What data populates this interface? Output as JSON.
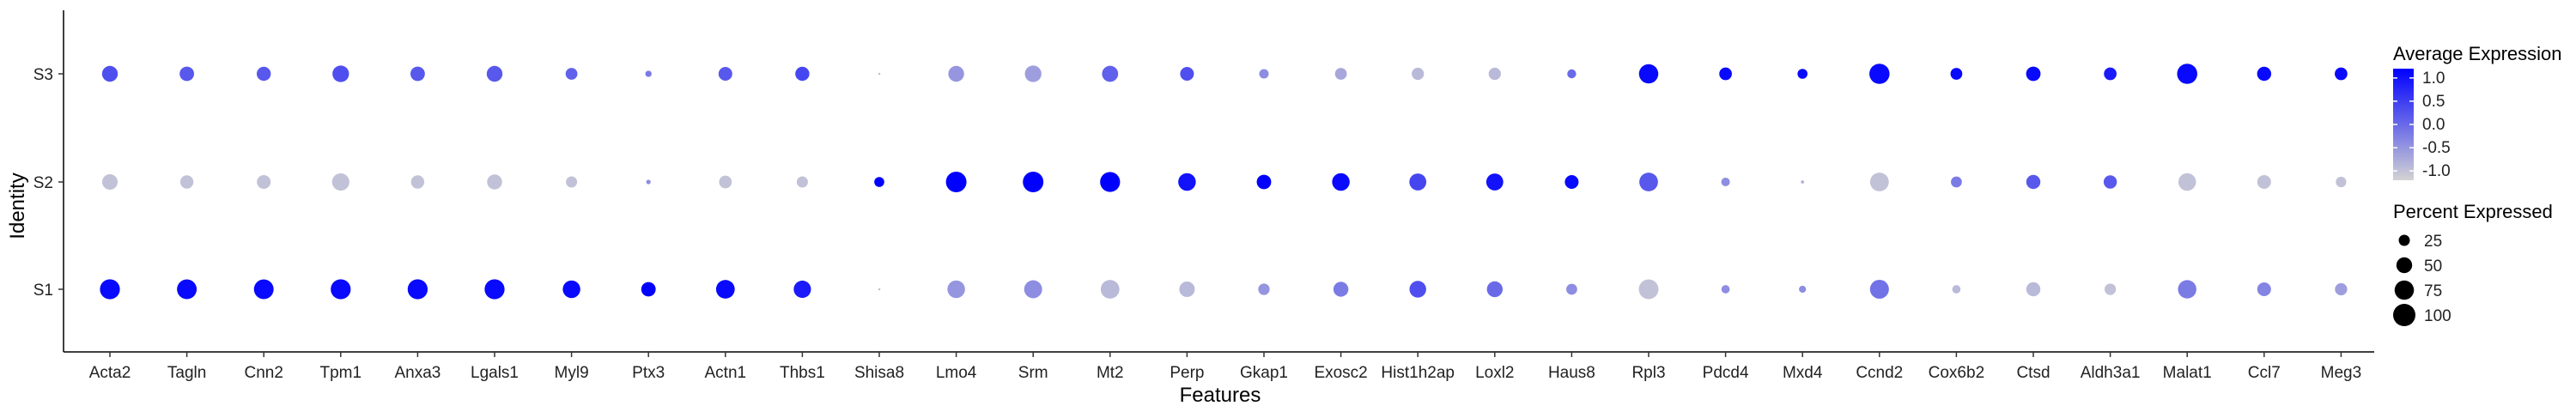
{
  "chart_data": {
    "type": "dotplot",
    "title": "",
    "xlabel": "Features",
    "ylabel": "Identity",
    "features": [
      "Acta2",
      "Tagln",
      "Cnn2",
      "Tpm1",
      "Anxa3",
      "Lgals1",
      "Myl9",
      "Ptx3",
      "Actn1",
      "Thbs1",
      "Shisa8",
      "Lmo4",
      "Srm",
      "Mt2",
      "Perp",
      "Gkap1",
      "Exosc2",
      "Hist1h2ap",
      "Loxl2",
      "Haus8",
      "Rpl3",
      "Pdcd4",
      "Mxd4",
      "Ccnd2",
      "Cox6b2",
      "Ctsd",
      "Aldh3a1",
      "Malat1",
      "Ccl7",
      "Meg3"
    ],
    "identities": [
      "S3",
      "S2",
      "S1"
    ],
    "series": [
      {
        "name": "S3",
        "avg_expression": [
          0.3,
          0.2,
          0.2,
          0.3,
          0.2,
          0.2,
          0.1,
          -0.2,
          0.2,
          0.4,
          -1.0,
          -0.5,
          -0.6,
          0.1,
          0.3,
          -0.4,
          -0.7,
          -0.9,
          -0.9,
          0.0,
          1.1,
          1.1,
          1.1,
          1.1,
          1.1,
          1.1,
          0.9,
          1.1,
          1.1,
          1.1
        ],
        "pct_expressed": [
          50,
          42,
          40,
          55,
          42,
          50,
          28,
          8,
          38,
          40,
          1,
          50,
          55,
          52,
          38,
          18,
          28,
          30,
          30,
          16,
          75,
          32,
          20,
          82,
          28,
          42,
          32,
          82,
          40,
          32
        ]
      },
      {
        "name": "S2",
        "avg_expression": [
          -1.0,
          -1.0,
          -1.0,
          -1.0,
          -1.0,
          -1.0,
          -1.0,
          -0.4,
          -1.0,
          -1.0,
          1.2,
          1.2,
          1.2,
          1.2,
          1.0,
          1.2,
          1.1,
          0.4,
          1.0,
          1.1,
          0.2,
          -0.4,
          -0.8,
          -1.0,
          -0.2,
          0.2,
          0.2,
          -1.0,
          -1.0,
          -1.0
        ],
        "pct_expressed": [
          48,
          35,
          38,
          60,
          35,
          45,
          25,
          4,
          32,
          25,
          20,
          85,
          85,
          80,
          62,
          42,
          62,
          58,
          58,
          38,
          70,
          15,
          2,
          70,
          24,
          40,
          35,
          62,
          38,
          22
        ]
      },
      {
        "name": "S1",
        "avg_expression": [
          1.1,
          1.1,
          1.1,
          1.1,
          1.1,
          1.1,
          1.1,
          1.2,
          1.1,
          0.9,
          -1.0,
          -0.5,
          -0.4,
          -0.9,
          -0.9,
          -0.5,
          -0.2,
          0.3,
          0.0,
          -0.4,
          -1.0,
          -0.4,
          -0.4,
          -0.1,
          -0.9,
          -0.9,
          -1.0,
          -0.2,
          -0.3,
          -0.6
        ],
        "pct_expressed": [
          80,
          78,
          78,
          80,
          80,
          80,
          62,
          42,
          70,
          60,
          1,
          62,
          65,
          70,
          48,
          26,
          45,
          56,
          50,
          24,
          78,
          14,
          10,
          72,
          14,
          40,
          26,
          68,
          38,
          30
        ]
      }
    ],
    "color_legend": {
      "title": "Average Expression",
      "range": [
        -1.2,
        1.2
      ],
      "ticks": [
        "1.0",
        "0.5",
        "0.0",
        "-0.5",
        "-1.0"
      ],
      "tick_values": [
        1.0,
        0.5,
        0.0,
        -0.5,
        -1.0
      ],
      "low_color": "#d3d3d3",
      "high_color": "#0000ff"
    },
    "size_legend": {
      "title": "Percent Expressed",
      "labels": [
        "25",
        "50",
        "75",
        "100"
      ],
      "values": [
        25,
        50,
        75,
        100
      ]
    }
  }
}
